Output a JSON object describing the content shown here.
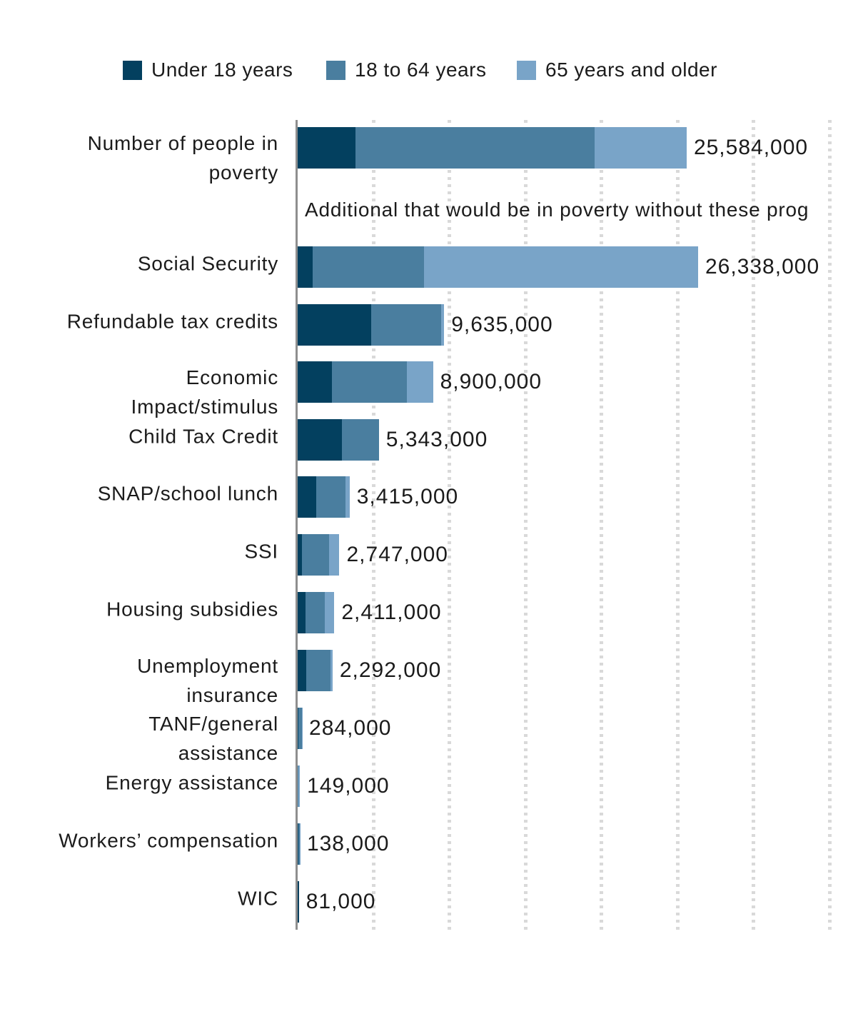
{
  "legend": {
    "items": [
      {
        "label": "Under 18 years",
        "color": "#03405f"
      },
      {
        "label": "18 to 64 years",
        "color": "#4a7e9f"
      },
      {
        "label": "65 years and older",
        "color": "#79a4c8"
      }
    ]
  },
  "section_note": "Additional that would be in poverty without these prog",
  "chart_data": {
    "type": "bar",
    "orientation": "horizontal",
    "stacked": true,
    "unit": "people",
    "title": "",
    "xlabel": "",
    "ylabel": "",
    "legend_position": "top",
    "grid": "dotted-vertical",
    "x_gridline_interval": 5000000,
    "xlim": [
      0,
      36000000
    ],
    "series_names": [
      "Under 18 years",
      "18 to 64 years",
      "65 years and older"
    ],
    "colors": {
      "under_18": "#03405f",
      "18_to_64": "#4a7e9f",
      "65_and_older": "#79a4c8",
      "axis": "#8f8f8f",
      "grid": "#d9d9d9",
      "text": "#1b1b1b"
    },
    "rows": [
      {
        "label": "Number of people in poverty",
        "label_lines": [
          "Number of people in",
          "poverty"
        ],
        "total": 25584000,
        "total_label": "25,584,000",
        "values": [
          3800000,
          15750000,
          6034000
        ]
      },
      {
        "label": "Social Security",
        "label_lines": [
          "Social Security"
        ],
        "total": 26338000,
        "total_label": "26,338,000",
        "values": [
          990000,
          7300000,
          18048000
        ]
      },
      {
        "label": "Refundable tax credits",
        "label_lines": [
          "Refundable tax credits"
        ],
        "total": 9635000,
        "total_label": "9,635,000",
        "values": [
          4850000,
          4570000,
          215000
        ]
      },
      {
        "label": "Economic Impact/stimulus",
        "label_lines": [
          "Economic",
          "Impact/stimulus"
        ],
        "total": 8900000,
        "total_label": "8,900,000",
        "values": [
          2260000,
          4940000,
          1700000
        ]
      },
      {
        "label": "Child Tax Credit",
        "label_lines": [
          "Child Tax Credit"
        ],
        "total": 5343000,
        "total_label": "5,343,000",
        "values": [
          2920000,
          2423000,
          0
        ]
      },
      {
        "label": "SNAP/school lunch",
        "label_lines": [
          "SNAP/school lunch"
        ],
        "total": 3415000,
        "total_label": "3,415,000",
        "values": [
          1225000,
          1900000,
          290000
        ]
      },
      {
        "label": "SSI",
        "label_lines": [
          "SSI"
        ],
        "total": 2747000,
        "total_label": "2,747,000",
        "values": [
          280000,
          1790000,
          677000
        ]
      },
      {
        "label": "Housing subsidies",
        "label_lines": [
          "Housing subsidies"
        ],
        "total": 2411000,
        "total_label": "2,411,000",
        "values": [
          520000,
          1271000,
          620000
        ]
      },
      {
        "label": "Unemployment insurance",
        "label_lines": [
          "Unemployment",
          "insurance"
        ],
        "total": 2292000,
        "total_label": "2,292,000",
        "values": [
          560000,
          1602000,
          130000
        ]
      },
      {
        "label": "TANF/general assistance",
        "label_lines": [
          "TANF/general",
          "assistance"
        ],
        "total": 284000,
        "total_label": "284,000",
        "values": [
          60000,
          215000,
          9000
        ]
      },
      {
        "label": "Energy assistance",
        "label_lines": [
          "Energy assistance"
        ],
        "total": 149000,
        "total_label": "149,000",
        "values": [
          0,
          40000,
          109000
        ]
      },
      {
        "label": "Workers’ compensation",
        "label_lines": [
          "Workers’ compensation"
        ],
        "total": 138000,
        "total_label": "138,000",
        "values": [
          25000,
          100000,
          13000
        ]
      },
      {
        "label": "WIC",
        "label_lines": [
          "WIC"
        ],
        "total": 81000,
        "total_label": "81,000",
        "values": [
          81000,
          0,
          0
        ]
      }
    ]
  }
}
